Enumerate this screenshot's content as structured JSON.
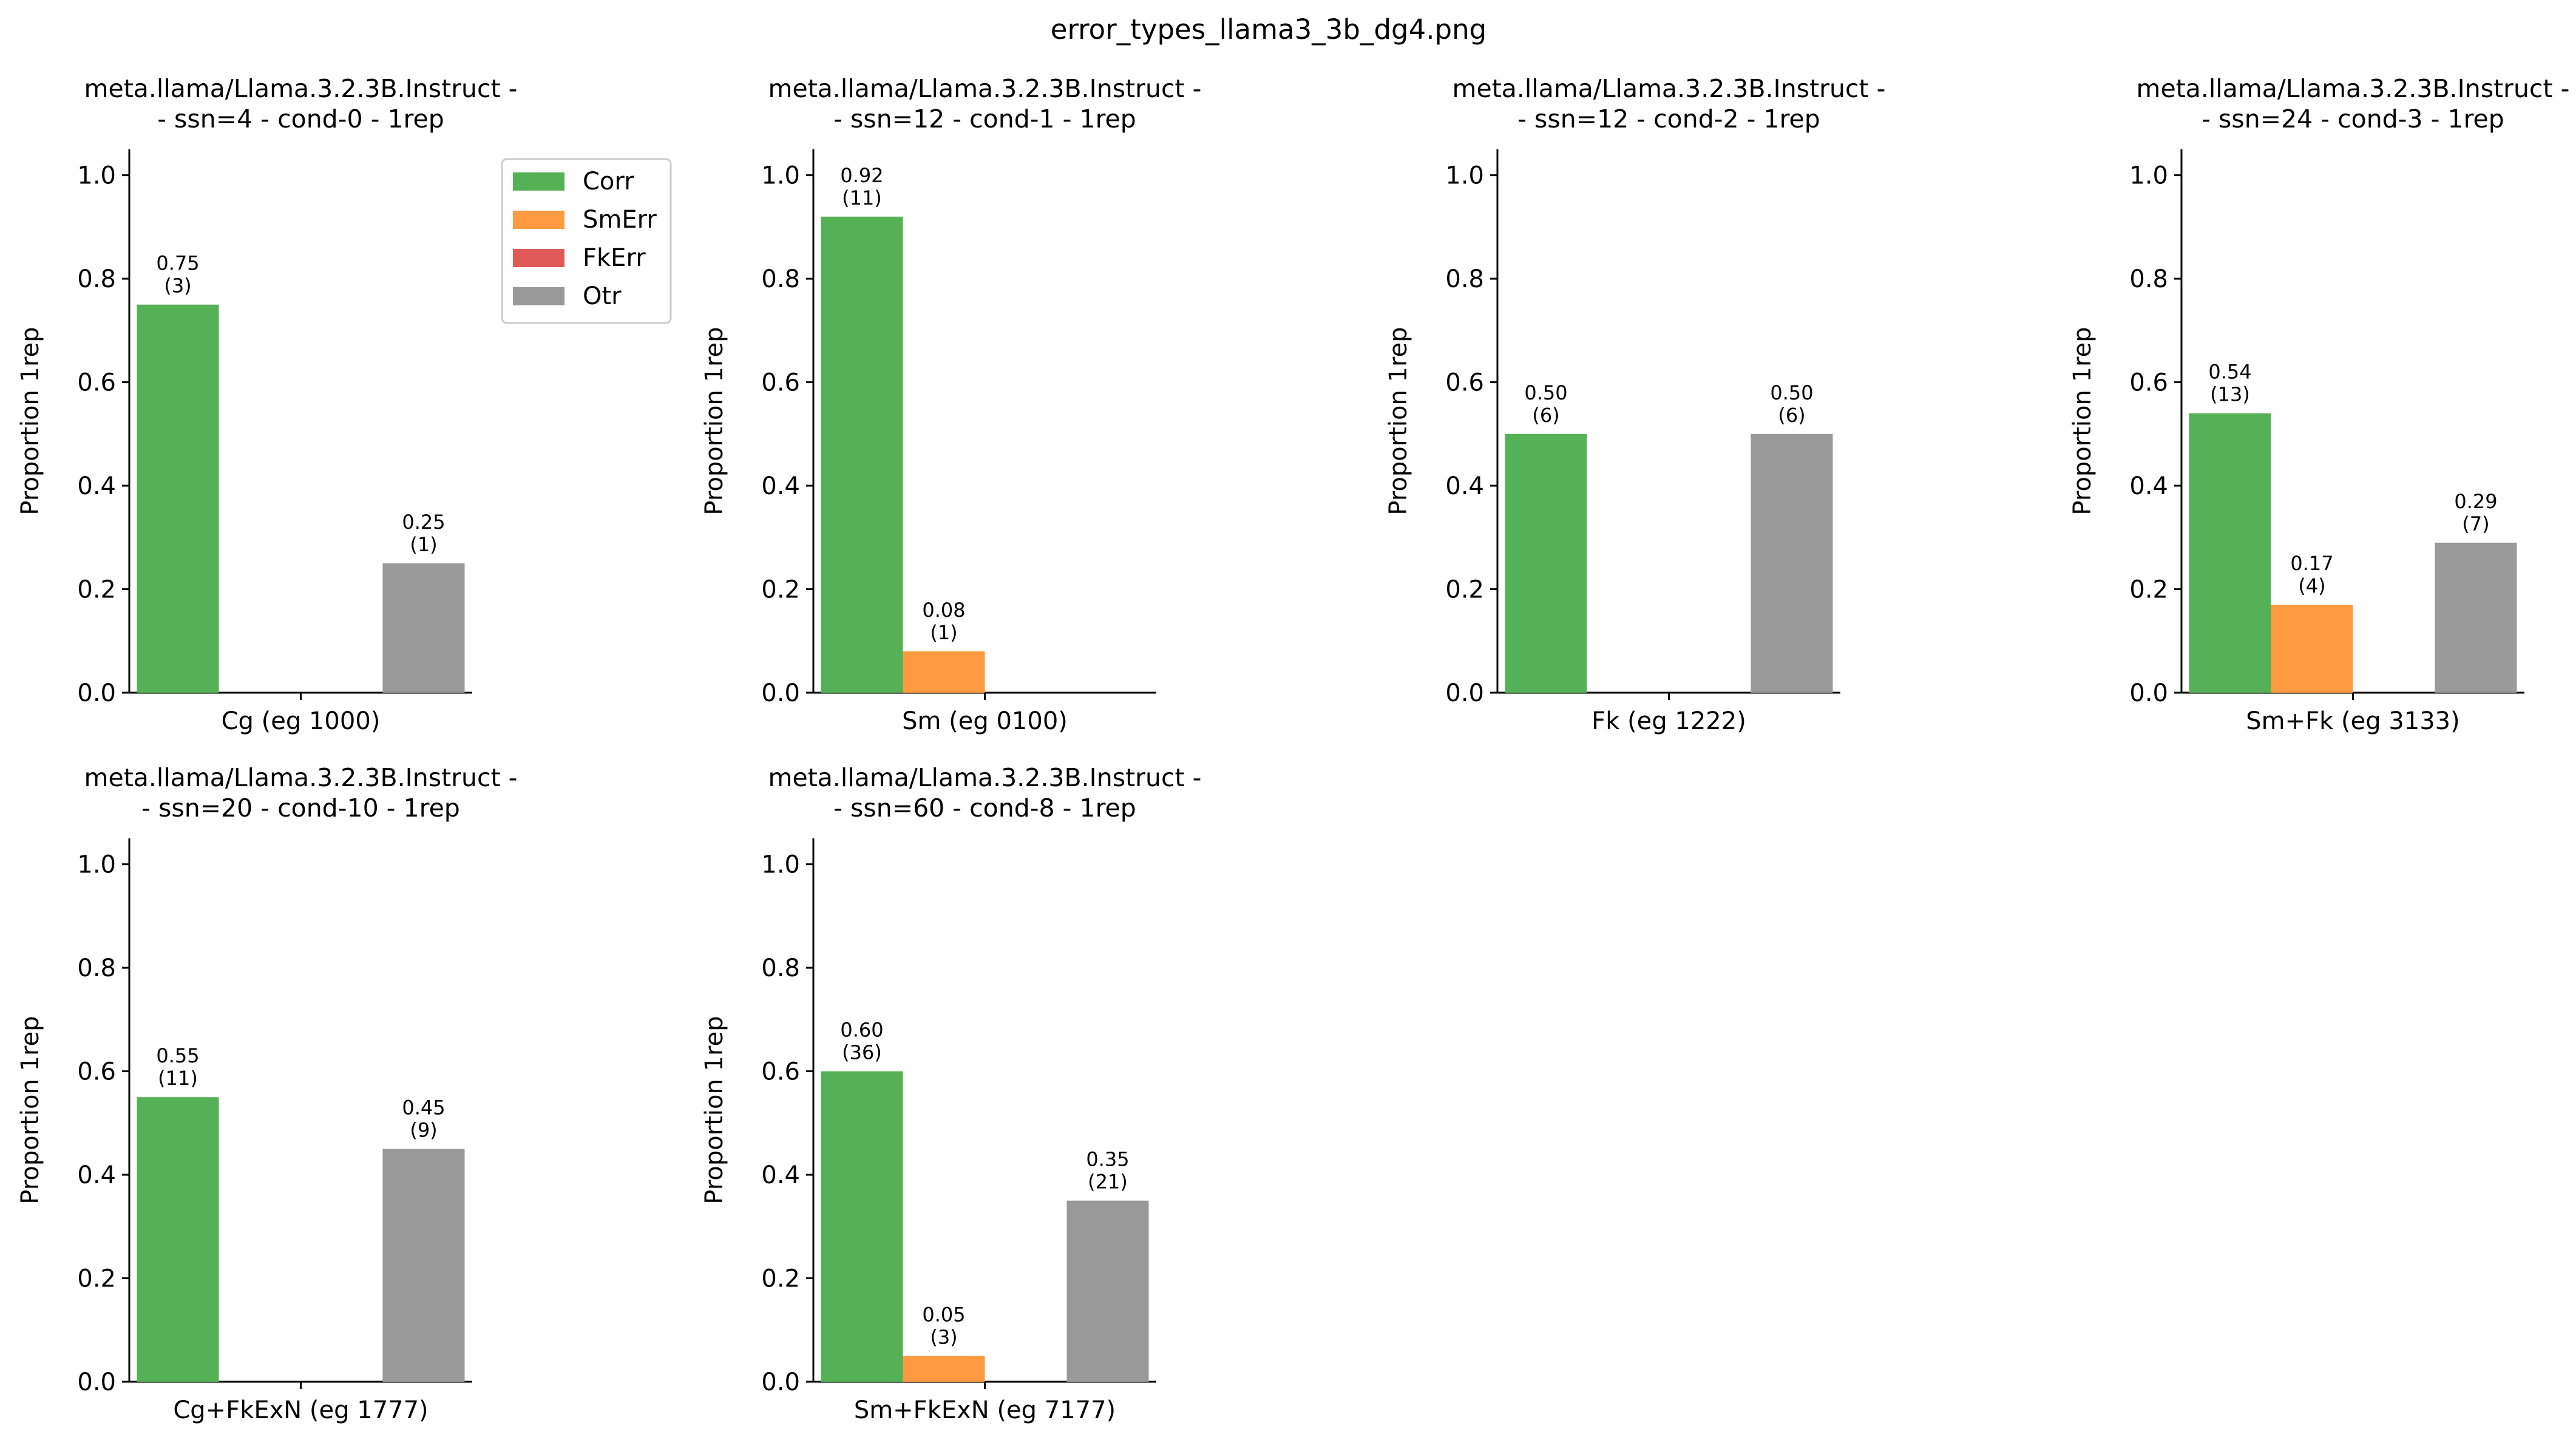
{
  "figure_title": "error_types_llama3_3b_dg4.png",
  "legend": [
    {
      "label": "Corr",
      "color": "#55b155"
    },
    {
      "label": "SmErr",
      "color": "#fe9a3f"
    },
    {
      "label": "FkErr",
      "color": "#e05a5a"
    },
    {
      "label": "Otr",
      "color": "#999999"
    }
  ],
  "chart_data": [
    {
      "type": "bar",
      "title_lines": [
        "meta.llama/Llama.3.2.3B.Instruct -",
        "- ssn=4 - cond-0 - 1rep"
      ],
      "ylabel": "Proportion 1rep",
      "xlabel": "Cg (eg 1000)",
      "ylim": [
        0,
        1.05
      ],
      "yticks": [
        "0.0",
        "0.2",
        "0.4",
        "0.6",
        "0.8",
        "1.0"
      ],
      "series": [
        {
          "name": "Corr",
          "value": 0.75,
          "label": "0.75",
          "count": "(3)"
        },
        {
          "name": "SmErr",
          "value": 0,
          "label": "",
          "count": ""
        },
        {
          "name": "FkErr",
          "value": 0,
          "label": "",
          "count": ""
        },
        {
          "name": "Otr",
          "value": 0.25,
          "label": "0.25",
          "count": "(1)"
        }
      ]
    },
    {
      "type": "bar",
      "title_lines": [
        "meta.llama/Llama.3.2.3B.Instruct -",
        "- ssn=12 - cond-1 - 1rep"
      ],
      "ylabel": "Proportion 1rep",
      "xlabel": "Sm (eg 0100)",
      "ylim": [
        0,
        1.05
      ],
      "yticks": [
        "0.0",
        "0.2",
        "0.4",
        "0.6",
        "0.8",
        "1.0"
      ],
      "series": [
        {
          "name": "Corr",
          "value": 0.92,
          "label": "0.92",
          "count": "(11)"
        },
        {
          "name": "SmErr",
          "value": 0.08,
          "label": "0.08",
          "count": "(1)"
        },
        {
          "name": "FkErr",
          "value": 0,
          "label": "",
          "count": ""
        },
        {
          "name": "Otr",
          "value": 0,
          "label": "",
          "count": ""
        }
      ]
    },
    {
      "type": "bar",
      "title_lines": [
        "meta.llama/Llama.3.2.3B.Instruct -",
        "- ssn=12 - cond-2 - 1rep"
      ],
      "ylabel": "Proportion 1rep",
      "xlabel": "Fk (eg 1222)",
      "ylim": [
        0,
        1.05
      ],
      "yticks": [
        "0.0",
        "0.2",
        "0.4",
        "0.6",
        "0.8",
        "1.0"
      ],
      "series": [
        {
          "name": "Corr",
          "value": 0.5,
          "label": "0.50",
          "count": "(6)"
        },
        {
          "name": "SmErr",
          "value": 0,
          "label": "",
          "count": ""
        },
        {
          "name": "FkErr",
          "value": 0,
          "label": "",
          "count": ""
        },
        {
          "name": "Otr",
          "value": 0.5,
          "label": "0.50",
          "count": "(6)"
        }
      ]
    },
    {
      "type": "bar",
      "title_lines": [
        "meta.llama/Llama.3.2.3B.Instruct -",
        "- ssn=24 - cond-3 - 1rep"
      ],
      "ylabel": "Proportion 1rep",
      "xlabel": "Sm+Fk (eg 3133)",
      "ylim": [
        0,
        1.05
      ],
      "yticks": [
        "0.0",
        "0.2",
        "0.4",
        "0.6",
        "0.8",
        "1.0"
      ],
      "series": [
        {
          "name": "Corr",
          "value": 0.54,
          "label": "0.54",
          "count": "(13)"
        },
        {
          "name": "SmErr",
          "value": 0.17,
          "label": "0.17",
          "count": "(4)"
        },
        {
          "name": "FkErr",
          "value": 0,
          "label": "",
          "count": ""
        },
        {
          "name": "Otr",
          "value": 0.29,
          "label": "0.29",
          "count": "(7)"
        }
      ]
    },
    {
      "type": "bar",
      "title_lines": [
        "meta.llama/Llama.3.2.3B.Instruct -",
        "- ssn=20 - cond-10 - 1rep"
      ],
      "ylabel": "Proportion 1rep",
      "xlabel": "Cg+FkExN (eg 1777)",
      "ylim": [
        0,
        1.05
      ],
      "yticks": [
        "0.0",
        "0.2",
        "0.4",
        "0.6",
        "0.8",
        "1.0"
      ],
      "series": [
        {
          "name": "Corr",
          "value": 0.55,
          "label": "0.55",
          "count": "(11)"
        },
        {
          "name": "SmErr",
          "value": 0,
          "label": "",
          "count": ""
        },
        {
          "name": "FkErr",
          "value": 0,
          "label": "",
          "count": ""
        },
        {
          "name": "Otr",
          "value": 0.45,
          "label": "0.45",
          "count": "(9)"
        }
      ]
    },
    {
      "type": "bar",
      "title_lines": [
        "meta.llama/Llama.3.2.3B.Instruct -",
        "- ssn=60 - cond-8 - 1rep"
      ],
      "ylabel": "Proportion 1rep",
      "xlabel": "Sm+FkExN (eg 7177)",
      "ylim": [
        0,
        1.05
      ],
      "yticks": [
        "0.0",
        "0.2",
        "0.4",
        "0.6",
        "0.8",
        "1.0"
      ],
      "series": [
        {
          "name": "Corr",
          "value": 0.6,
          "label": "0.60",
          "count": "(36)"
        },
        {
          "name": "SmErr",
          "value": 0.05,
          "label": "0.05",
          "count": "(3)"
        },
        {
          "name": "FkErr",
          "value": 0,
          "label": "",
          "count": ""
        },
        {
          "name": "Otr",
          "value": 0.35,
          "label": "0.35",
          "count": "(21)"
        }
      ]
    }
  ]
}
